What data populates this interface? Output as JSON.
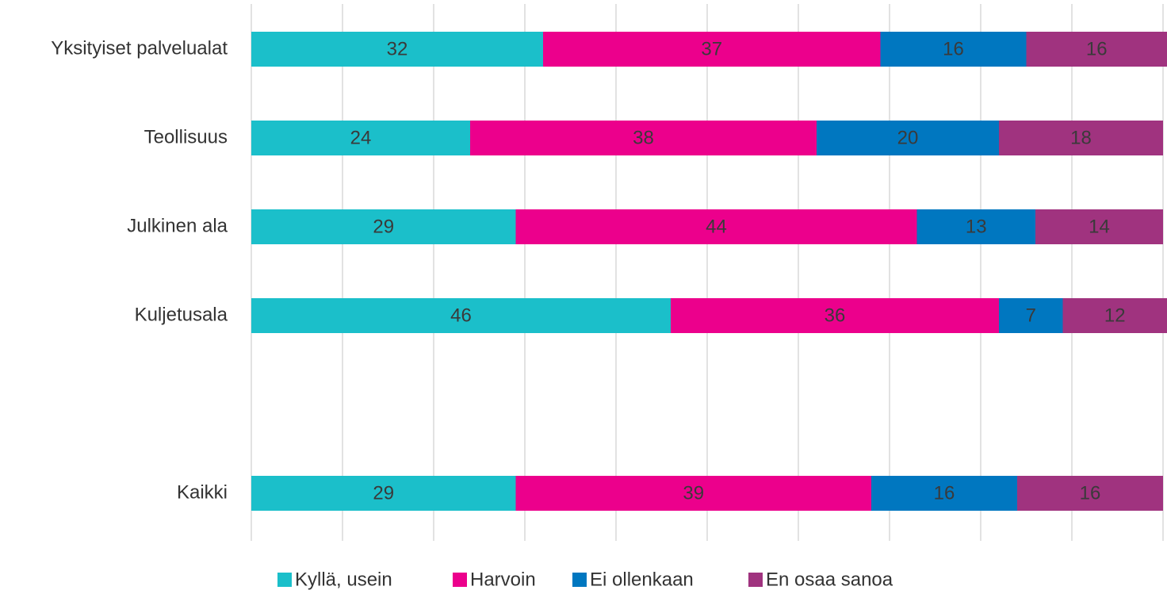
{
  "chart_data": {
    "type": "stacked-barh",
    "categories": [
      "Yksityiset palvelualat",
      "Teollisuus",
      "Julkinen ala",
      "Kuljetusala",
      null,
      "Kaikki"
    ],
    "series": [
      {
        "name": "Kyllä, usein",
        "color": "#1bbfca",
        "values": [
          32,
          24,
          29,
          46,
          null,
          29
        ]
      },
      {
        "name": "Harvoin",
        "color": "#ec008c",
        "values": [
          37,
          38,
          44,
          36,
          null,
          39
        ]
      },
      {
        "name": "Ei ollenkaan",
        "color": "#0077c0",
        "values": [
          16,
          20,
          13,
          7,
          null,
          16
        ]
      },
      {
        "name": "En osaa sanoa",
        "color": "#a0337f",
        "values": [
          16,
          18,
          14,
          12,
          null,
          16
        ]
      }
    ],
    "xlim": [
      0,
      100
    ],
    "xticks": [
      0,
      10,
      20,
      30,
      40,
      50,
      60,
      70,
      80,
      90,
      100
    ],
    "grid": true,
    "legend": "bottom"
  }
}
